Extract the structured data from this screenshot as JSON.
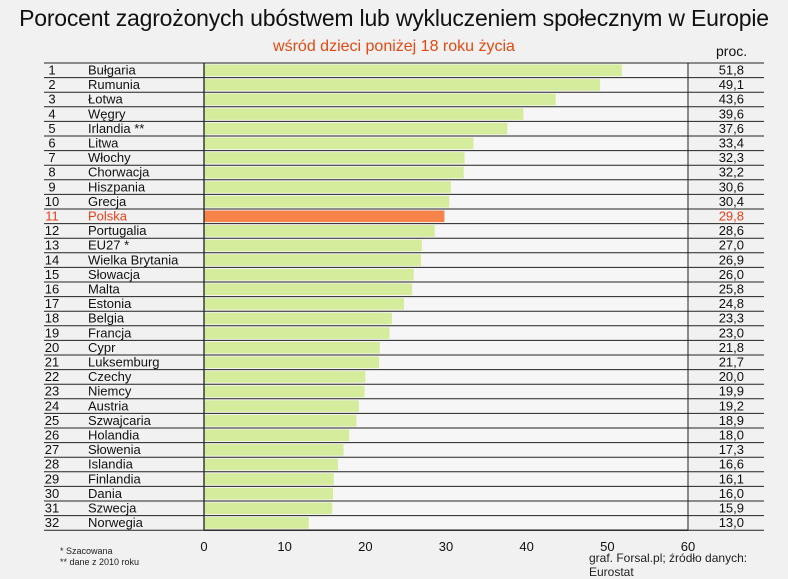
{
  "chart_data": {
    "type": "bar",
    "orientation": "horizontal",
    "title": "Porocent zagrożonych ubóstwem lub wykluczeniem społecznym w Europie",
    "subtitle": "wśród dzieci poniżej 18 roku życia",
    "unit_label": "proc.",
    "ranks": [
      "1",
      "2",
      "3",
      "4",
      "5",
      "6",
      "7",
      "8",
      "9",
      "10",
      "11",
      "12",
      "13",
      "14",
      "15",
      "16",
      "17",
      "18",
      "19",
      "20",
      "21",
      "22",
      "23",
      "24",
      "25",
      "26",
      "27",
      "28",
      "29",
      "30",
      "31",
      "32"
    ],
    "categories": [
      "Bułgaria",
      "Rumunia",
      "Łotwa",
      "Węgry",
      "Irlandia **",
      "Litwa",
      "Włochy",
      "Chorwacja",
      "Hiszpania",
      "Grecja",
      "Polska",
      "Portugalia",
      "EU27 *",
      "Wielka Brytania",
      "Słowacja",
      "Malta",
      "Estonia",
      "Belgia",
      "Francja",
      "Cypr",
      "Luksemburg",
      "Czechy",
      "Niemcy",
      "Austria",
      "Szwajcaria",
      "Holandia",
      "Słowenia",
      "Islandia",
      "Finlandia",
      "Dania",
      "Szwecja",
      "Norwegia"
    ],
    "values": [
      51.8,
      49.1,
      43.6,
      39.6,
      37.6,
      33.4,
      32.3,
      32.2,
      30.6,
      30.4,
      29.8,
      28.6,
      27.0,
      26.9,
      26.0,
      25.8,
      24.8,
      23.3,
      23.0,
      21.8,
      21.7,
      20.0,
      19.9,
      19.2,
      18.9,
      18.0,
      17.3,
      16.6,
      16.1,
      16.0,
      15.9,
      13.0
    ],
    "value_labels": [
      "51,8",
      "49,1",
      "43,6",
      "39,6",
      "37,6",
      "33,4",
      "32,3",
      "32,2",
      "30,6",
      "30,4",
      "29,8",
      "28,6",
      "27,0",
      "26,9",
      "26,0",
      "25,8",
      "24,8",
      "23,3",
      "23,0",
      "21,8",
      "21,7",
      "20,0",
      "19,9",
      "19,2",
      "18,9",
      "18,0",
      "17,3",
      "16,6",
      "16,1",
      "16,0",
      "15,9",
      "13,0"
    ],
    "highlight_index": 10,
    "xlim": [
      0,
      60
    ],
    "xticks": [
      "0",
      "10",
      "20",
      "30",
      "40",
      "50",
      "60"
    ],
    "grid": true,
    "colors": {
      "bar": "#d6ec9d",
      "highlight_bar": "#f5834a",
      "highlight_text": "#e8401a",
      "subtitle": "#e04a12",
      "background": "#f1f1f1"
    }
  },
  "notes": {
    "footnote1": "* Szacowana",
    "footnote2": "** dane z 2010 roku",
    "credit": "graf. Forsal.pl; źródło danych: Eurostat"
  }
}
